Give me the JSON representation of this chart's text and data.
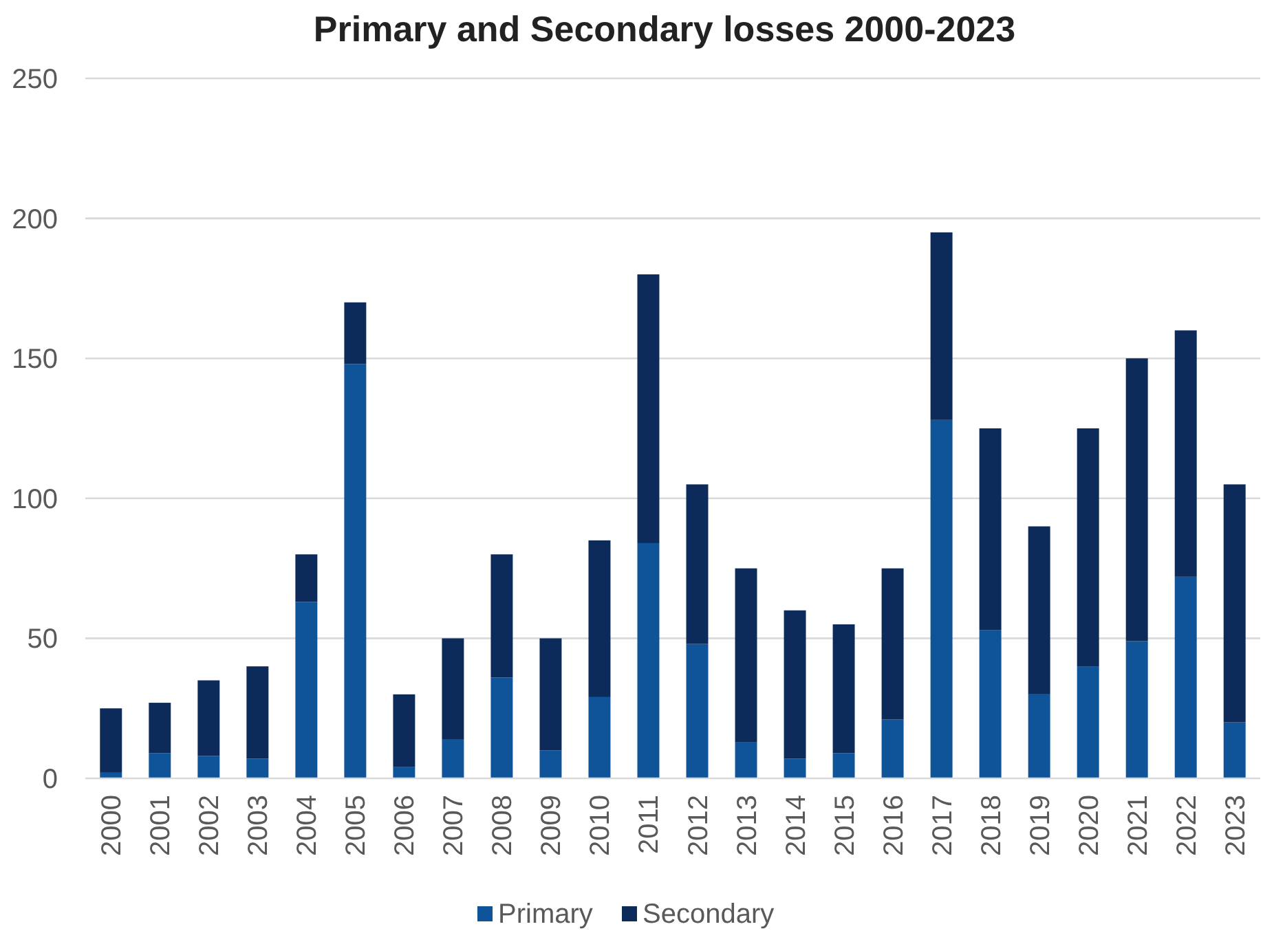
{
  "chart_data": {
    "type": "bar",
    "title": "Primary and Secondary losses 2000-2023",
    "categories": [
      "2000",
      "2001",
      "2002",
      "2003",
      "2004",
      "2005",
      "2006",
      "2007",
      "2008",
      "2009",
      "2010",
      "2011",
      "2012",
      "2013",
      "2014",
      "2015",
      "2016",
      "2017",
      "2018",
      "2019",
      "2020",
      "2021",
      "2022",
      "2023"
    ],
    "series": [
      {
        "name": "Primary",
        "color": "#0f5499",
        "values": [
          2,
          9,
          8,
          7,
          63,
          148,
          4,
          14,
          36,
          10,
          29,
          84,
          48,
          13,
          7,
          9,
          21,
          128,
          53,
          30,
          40,
          49,
          72,
          20
        ]
      },
      {
        "name": "Secondary",
        "color": "#0d2b5a",
        "values": [
          23,
          18,
          27,
          33,
          17,
          22,
          26,
          36,
          44,
          40,
          56,
          96,
          57,
          62,
          53,
          46,
          54,
          67,
          72,
          60,
          85,
          101,
          88,
          85
        ]
      }
    ],
    "stacked": true,
    "ylim": [
      0,
      250
    ],
    "yticks": [
      0,
      50,
      100,
      150,
      200,
      250
    ],
    "grid": "y",
    "legend": "bottom"
  }
}
